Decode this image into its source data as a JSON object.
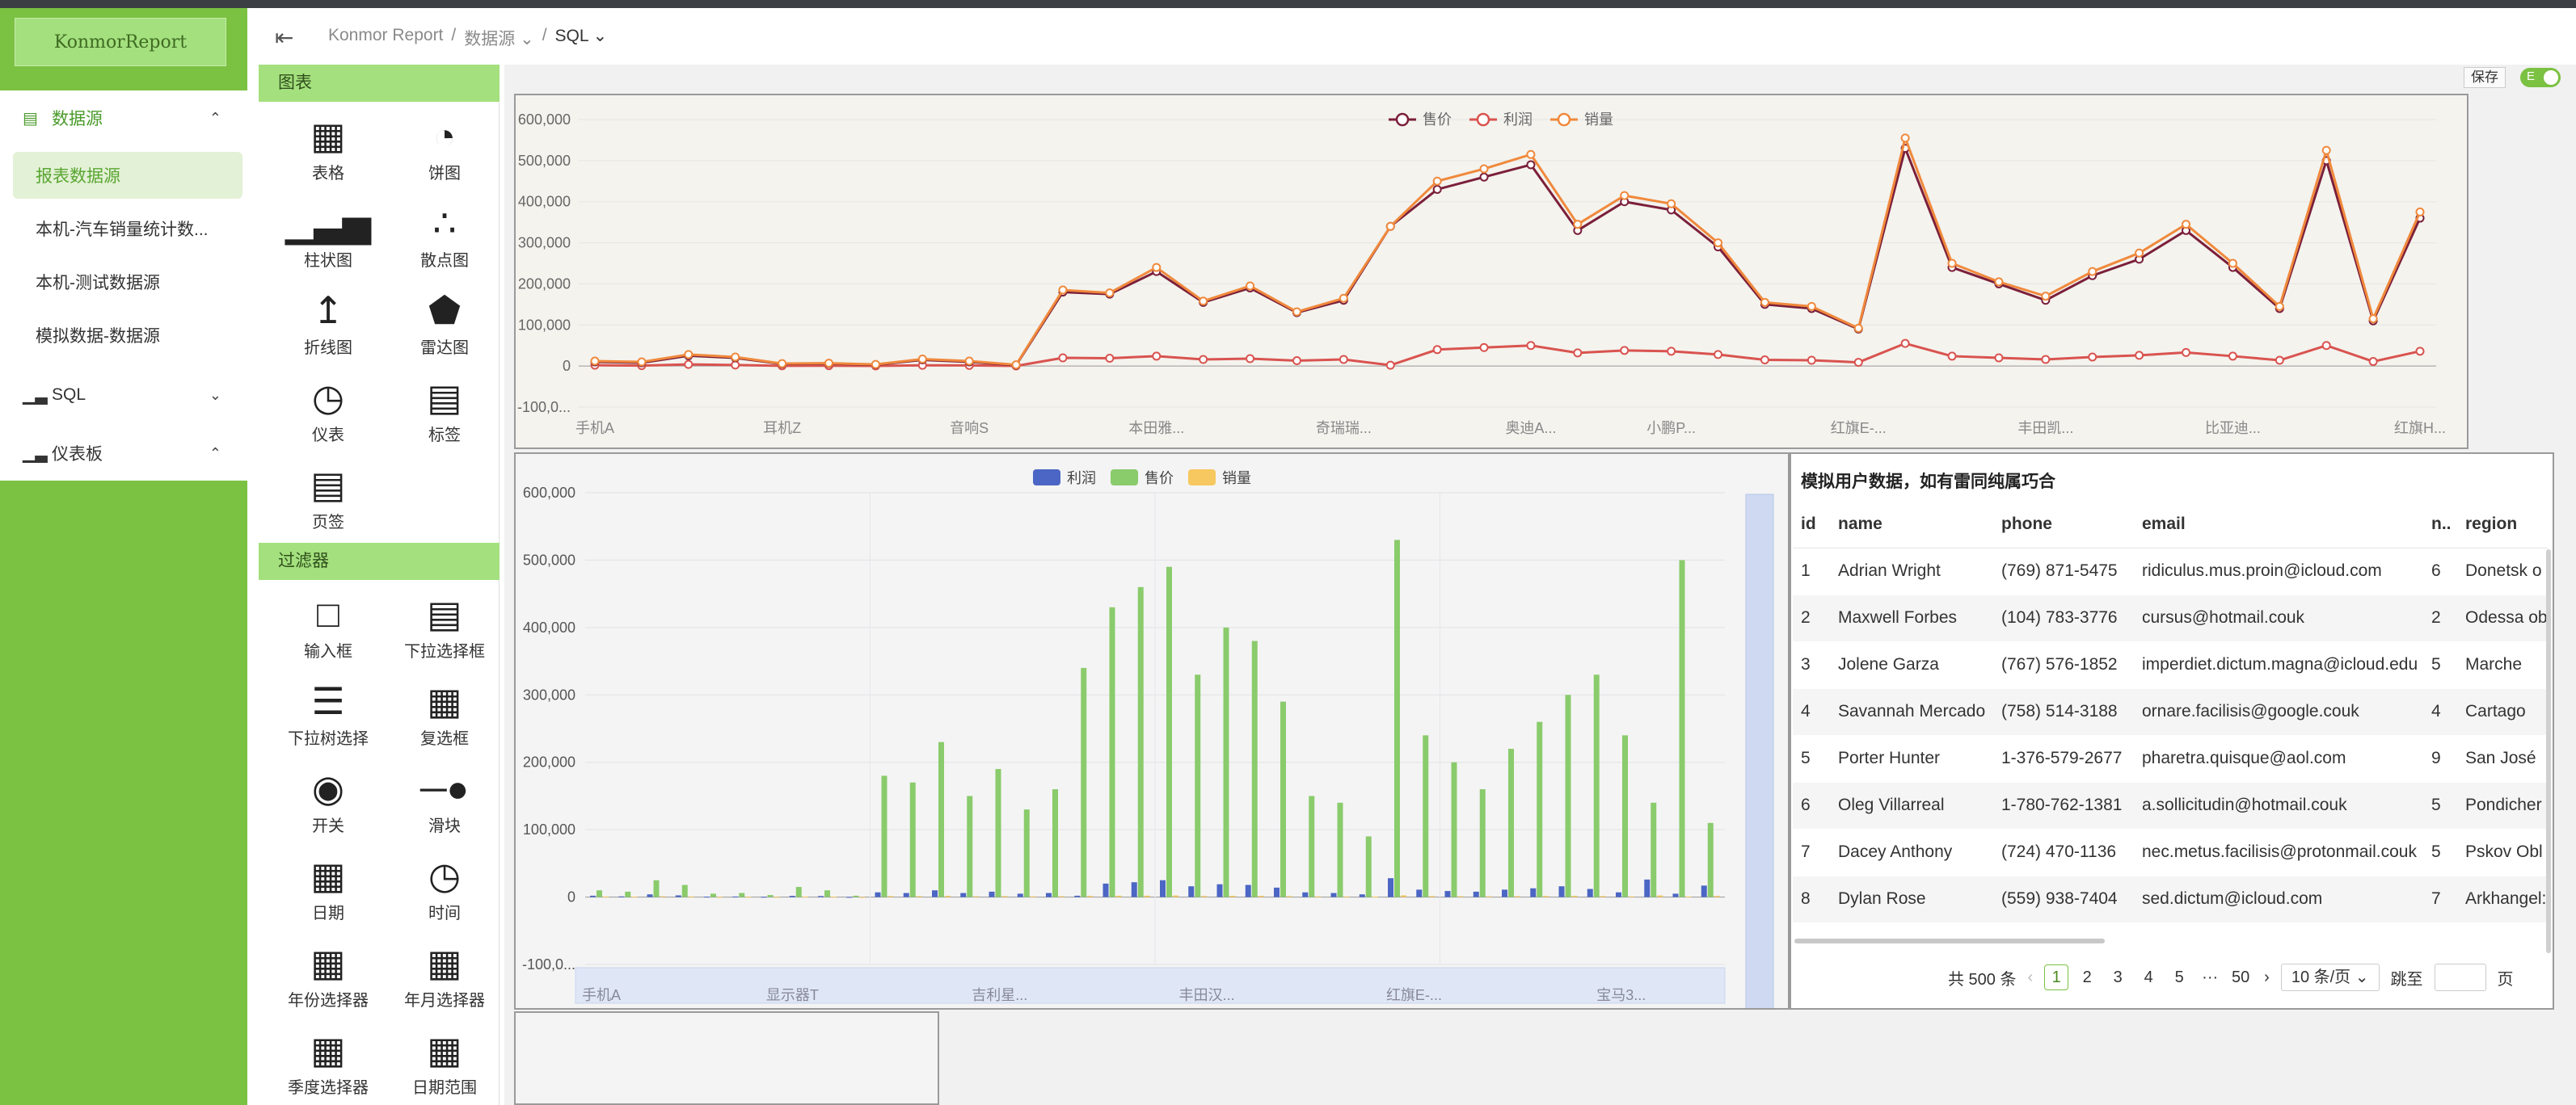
{
  "app": {
    "logo": "KonmorReport"
  },
  "sidebar": {
    "items": [
      {
        "label": "数据源",
        "icon": "database-icon",
        "expanded": true,
        "active": true
      },
      {
        "label": "报表数据源",
        "sub": true,
        "active": true
      },
      {
        "label": "本机-汽车销量统计数...",
        "sub": true
      },
      {
        "label": "本机-测试数据源",
        "sub": true
      },
      {
        "label": "模拟数据-数据源",
        "sub": true
      },
      {
        "label": "SQL",
        "icon": "bar-chart-icon",
        "expanded": false
      },
      {
        "label": "仪表板",
        "icon": "bar-chart-icon",
        "expanded": true
      }
    ]
  },
  "breadcrumb": [
    "Konmor Report",
    "数据源",
    "SQL"
  ],
  "toolbar": {
    "save_label": "保存",
    "toggle_label": "E"
  },
  "palette": {
    "charts_title": "图表",
    "charts": [
      "表格",
      "饼图",
      "柱状图",
      "散点图",
      "折线图",
      "雷达图",
      "仪表",
      "标签",
      "页签"
    ],
    "filters_title": "过滤器",
    "filters": [
      "输入框",
      "下拉选择框",
      "下拉树选择",
      "复选框",
      "开关",
      "滑块",
      "日期",
      "时间",
      "年份选择器",
      "年月选择器",
      "季度选择器",
      "日期范围"
    ]
  },
  "chart_data": [
    {
      "type": "line",
      "legend": [
        "售价",
        "利润",
        "销量"
      ],
      "legend_position": "top-center",
      "ylim": [
        -100000,
        600000
      ],
      "yticks": [
        "600,000",
        "500,000",
        "400,000",
        "300,000",
        "200,000",
        "100,000",
        "0",
        "-100,0..."
      ],
      "xlabels_shown": [
        "手机A",
        "耳机Z",
        "音响S",
        "本田雅...",
        "奇瑞瑞...",
        "奥迪A...",
        "小鹏P...",
        "红旗E-...",
        "丰田凯...",
        "比亚迪...",
        "红旗H..."
      ],
      "colors": {
        "售价": "#7b1f3a",
        "利润": "#d9534f",
        "销量": "#f0893c"
      },
      "series": [
        {
          "name": "售价",
          "values": [
            10000,
            8000,
            25000,
            20000,
            5000,
            6000,
            3000,
            15000,
            10000,
            2000,
            180000,
            175000,
            230000,
            155000,
            190000,
            130000,
            160000,
            340000,
            430000,
            460000,
            490000,
            330000,
            400000,
            380000,
            290000,
            150000,
            140000,
            90000,
            530000,
            240000,
            200000,
            160000,
            220000,
            260000,
            330000,
            240000,
            140000,
            500000,
            110000,
            360000
          ]
        },
        {
          "name": "利润",
          "values": [
            2000,
            1000,
            4000,
            2500,
            600,
            800,
            400,
            1800,
            1500,
            200,
            20000,
            19000,
            24000,
            16000,
            18000,
            13000,
            16000,
            2000,
            40000,
            45000,
            50000,
            32000,
            38000,
            36000,
            28000,
            15000,
            14000,
            9000,
            55000,
            24000,
            20000,
            16000,
            22000,
            26000,
            33000,
            24000,
            14000,
            50000,
            11000,
            36000
          ]
        },
        {
          "name": "销量",
          "values": [
            12000,
            10000,
            28000,
            22000,
            6000,
            7000,
            4000,
            17000,
            12000,
            3000,
            185000,
            178000,
            240000,
            158000,
            195000,
            132000,
            165000,
            340000,
            450000,
            480000,
            515000,
            345000,
            415000,
            395000,
            300000,
            155000,
            145000,
            92000,
            555000,
            250000,
            205000,
            170000,
            230000,
            275000,
            345000,
            250000,
            145000,
            525000,
            115000,
            375000
          ]
        }
      ]
    },
    {
      "type": "bar",
      "legend": [
        "利润",
        "售价",
        "销量"
      ],
      "legend_position": "top-center",
      "ylim": [
        -100000,
        600000
      ],
      "yticks": [
        "600,000",
        "500,000",
        "400,000",
        "300,000",
        "200,000",
        "100,000",
        "0",
        "-100,0..."
      ],
      "xlabels_shown": [
        "手机A",
        "显示器T",
        "吉利星...",
        "丰田汉...",
        "红旗E-...",
        "宝马3..."
      ],
      "colors": {
        "利润": "#4b66c4",
        "售价": "#8acb6c",
        "销量": "#f6c85f"
      },
      "series": [
        {
          "name": "利润",
          "values": [
            2000,
            1000,
            4000,
            2500,
            600,
            800,
            400,
            1800,
            1500,
            200,
            7000,
            6000,
            10000,
            6000,
            8000,
            5000,
            6000,
            2000,
            20000,
            22000,
            25000,
            16000,
            19000,
            18000,
            14000,
            7000,
            6000,
            4000,
            28000,
            11000,
            9000,
            8000,
            11000,
            13000,
            16000,
            12000,
            7000,
            26000,
            5000,
            17000
          ]
        },
        {
          "name": "售价",
          "values": [
            10000,
            8000,
            25000,
            18000,
            5000,
            6000,
            3000,
            15000,
            10000,
            2000,
            180000,
            170000,
            230000,
            150000,
            190000,
            130000,
            160000,
            340000,
            430000,
            460000,
            490000,
            330000,
            400000,
            380000,
            290000,
            150000,
            140000,
            90000,
            530000,
            240000,
            200000,
            160000,
            220000,
            260000,
            300000,
            330000,
            240000,
            140000,
            500000,
            110000
          ]
        },
        {
          "name": "销量",
          "values": [
            800,
            600,
            1200,
            900,
            300,
            400,
            200,
            700,
            600,
            100,
            1500,
            1400,
            1800,
            1200,
            1500,
            1000,
            1300,
            1700,
            2000,
            2100,
            2300,
            1600,
            1900,
            1800,
            1400,
            1000,
            900,
            700,
            2500,
            1500,
            1300,
            1100,
            1400,
            1600,
            1800,
            1500,
            1000,
            2400,
            800,
            1700
          ]
        }
      ]
    }
  ],
  "table": {
    "title": "模拟用户数据，如有雷同纯属巧合",
    "columns": [
      "id",
      "name",
      "phone",
      "email",
      "n..",
      "region"
    ],
    "rows": [
      [
        "1",
        "Adrian Wright",
        "(769) 871-5475",
        "ridiculus.mus.proin@icloud.com",
        "6",
        "Donetsk o"
      ],
      [
        "2",
        "Maxwell Forbes",
        "(104) 783-3776",
        "cursus@hotmail.couk",
        "2",
        "Odessa ob"
      ],
      [
        "3",
        "Jolene Garza",
        "(767) 576-1852",
        "imperdiet.dictum.magna@icloud.edu",
        "5",
        "Marche"
      ],
      [
        "4",
        "Savannah Mercado",
        "(758) 514-3188",
        "ornare.facilisis@google.couk",
        "4",
        "Cartago"
      ],
      [
        "5",
        "Porter Hunter",
        "1-376-579-2677",
        "pharetra.quisque@aol.com",
        "9",
        "San José"
      ],
      [
        "6",
        "Oleg Villarreal",
        "1-780-762-1381",
        "a.sollicitudin@hotmail.couk",
        "5",
        "Pondicher"
      ],
      [
        "7",
        "Dacey Anthony",
        "(724) 470-1136",
        "nec.metus.facilisis@protonmail.couk",
        "5",
        "Pskov Obl"
      ],
      [
        "8",
        "Dylan Rose",
        "(559) 938-7404",
        "sed.dictum@icloud.com",
        "7",
        "Arkhangel:"
      ]
    ],
    "pagination": {
      "total": "共 500 条",
      "pages": [
        "1",
        "2",
        "3",
        "4",
        "5",
        "···",
        "50"
      ],
      "current": "1",
      "page_size": "10 条/页",
      "jump_label": "跳至",
      "page_suffix": "页"
    }
  }
}
